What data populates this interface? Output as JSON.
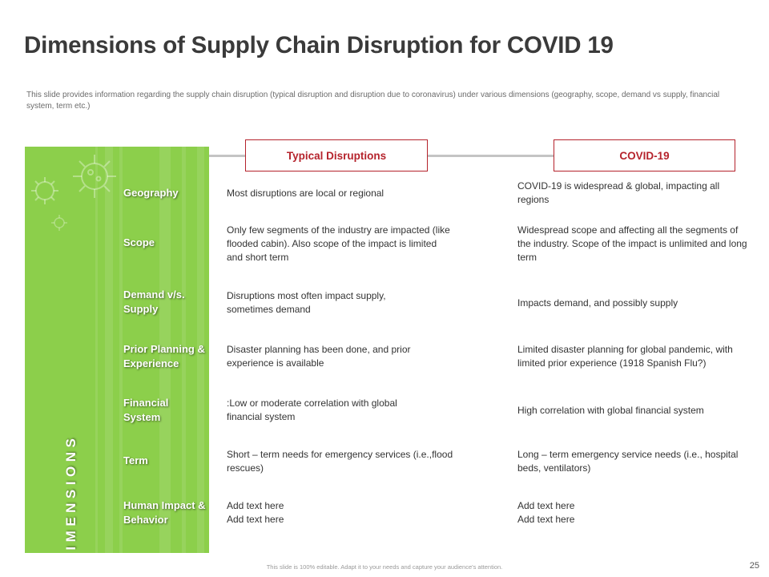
{
  "title": "Dimensions of Supply Chain Disruption for COVID 19",
  "subtitle": "This slide provides information regarding the supply chain disruption (typical disruption and disruption due to coronavirus) under various dimensions (geography, scope, demand vs supply, financial system, term etc.)",
  "panel": {
    "vertical_label": "DIMENSIONS"
  },
  "headers": {
    "typical": "Typical Disruptions",
    "covid": "COVID-19"
  },
  "rows": [
    {
      "dimension": "Geography",
      "typical": "Most disruptions are local or regional",
      "covid": "COVID-19 is widespread & global, impacting all regions"
    },
    {
      "dimension": "Scope",
      "typical": "Only few segments of the industry are impacted (like flooded cabin). Also scope of the impact is limited and short term",
      "covid": "Widespread scope and affecting all the segments of the industry. Scope of the impact is unlimited and long term"
    },
    {
      "dimension": "Demand v/s. Supply",
      "typical": "Disruptions most often impact supply, sometimes demand",
      "covid": "Impacts demand, and possibly supply"
    },
    {
      "dimension": "Prior Planning & Experience",
      "typical": "Disaster planning has been done, and prior experience is available",
      "covid": "Limited disaster planning for global pandemic, with limited prior experience (1918 Spanish Flu?)"
    },
    {
      "dimension": "Financial System",
      "typical": ":Low or moderate correlation with global financial system",
      "covid": "High correlation with global financial system"
    },
    {
      "dimension": "Term",
      "typical": "Short – term needs for emergency services (i.e.,flood rescues)",
      "covid": "Long – term emergency service needs (i.e., hospital beds, ventilators)"
    },
    {
      "dimension": "Human Impact & Behavior",
      "typical": "Add text here Add text here",
      "covid": "Add text here Add text here"
    }
  ],
  "footer": {
    "note": "This slide is 100% editable. Adapt it to your needs and capture your audience's attention.",
    "page_number": "25"
  },
  "colors": {
    "accent": "#b5232c",
    "panel_green": "#8ccf4b",
    "connector": "#c4c4c4"
  }
}
